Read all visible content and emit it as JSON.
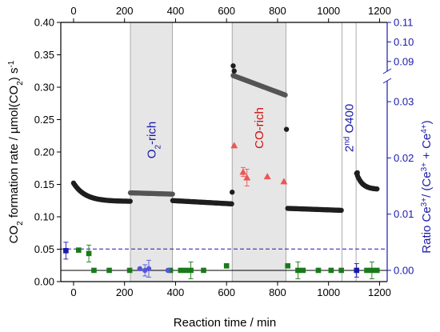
{
  "chart_data": {
    "type": "scatter",
    "xlabel": "Reaction time / min",
    "ylabel_parts": [
      "CO",
      "2",
      " formation rate / µmol(CO",
      "2",
      ") s",
      "-1"
    ],
    "y2label_parts": [
      "Ratio Ce",
      "3+",
      "/ (Ce",
      "3+",
      " + Ce",
      "4+",
      ")"
    ],
    "xlim": [
      -50,
      1230
    ],
    "ylim": [
      0,
      0.4
    ],
    "y2lim_lower": [
      -0.002,
      0.034
    ],
    "y2lim_upper": [
      0.085,
      0.11
    ],
    "x_ticks": [
      0,
      200,
      400,
      600,
      800,
      1000,
      1200
    ],
    "y_ticks": [
      0.0,
      0.05,
      0.1,
      0.15,
      0.2,
      0.25,
      0.3,
      0.35,
      0.4
    ],
    "y_tick_labels": [
      "0.00",
      "0.05",
      "0.10",
      "0.15",
      "0.20",
      "0.25",
      "0.30",
      "0.35",
      "0.40"
    ],
    "y2_ticks_lower": [
      0.0,
      0.01,
      0.02,
      0.03
    ],
    "y2_tick_labels_lower": [
      "0.00",
      "0.01",
      "0.02",
      "0.03"
    ],
    "y2_ticks_upper": [
      0.09,
      0.1,
      0.11
    ],
    "y2_tick_labels_upper": [
      "0.09",
      "0.10",
      "0.11"
    ],
    "regions": [
      {
        "label_parts": [
          "O",
          "2",
          "-rich"
        ],
        "x": [
          223,
          388
        ],
        "color": "#1a1aaa"
      },
      {
        "label_parts": [
          "CO-rich"
        ],
        "x": [
          622,
          833
        ],
        "color": "#cc1111"
      },
      {
        "label_parts": [
          "2",
          "nd",
          " O400"
        ],
        "x": [
          1053,
          1108
        ],
        "color": "#1a1aaa"
      }
    ],
    "series": [
      {
        "marker": "circle",
        "color": "#1e1e1e",
        "axis": "left",
        "segments": [
          {
            "x": [
              0,
              222
            ],
            "y": [
              0.152,
              0.124
            ],
            "decay": 0.8,
            "n": 55
          },
          {
            "x": [
              223,
              388
            ],
            "y": [
              0.137,
              0.135
            ],
            "decay": 0,
            "n": 40,
            "color": "#555555"
          },
          {
            "x": [
              389,
              620
            ],
            "y": [
              0.125,
              0.12
            ],
            "decay": 0,
            "n": 55
          },
          {
            "x": [
              626,
              830
            ],
            "y": [
              0.318,
              0.288
            ],
            "decay": 0,
            "n": 50,
            "color": "#555555"
          },
          {
            "x": [
              840,
              1050
            ],
            "y": [
              0.113,
              0.11
            ],
            "decay": 0,
            "n": 50
          },
          {
            "x": [
              1110,
              1190
            ],
            "y": [
              0.167,
              0.143
            ],
            "decay": 0.6,
            "n": 22
          }
        ],
        "points": [
          [
            622,
            0.138
          ],
          [
            626,
            0.333
          ],
          [
            630,
            0.325
          ],
          [
            835,
            0.235
          ],
          [
            1113,
            0.168
          ]
        ]
      },
      {
        "marker": "square",
        "color": "#1a7a1a",
        "axis": "y2-lower",
        "points": [
          [
            20,
            0.0036,
            0.0
          ],
          [
            60,
            0.003,
            0.0015
          ],
          [
            80,
            0.0,
            0.0
          ],
          [
            140,
            0.0,
            0.0
          ],
          [
            220,
            0.0,
            0.0
          ],
          [
            380,
            0.0,
            0.0
          ],
          [
            420,
            0.0,
            0.0
          ],
          [
            440,
            0.0,
            0.0
          ],
          [
            460,
            0.0,
            0.0
          ],
          [
            510,
            0.0,
            0.0
          ],
          [
            600,
            0.0008,
            0.0
          ],
          [
            840,
            0.0008,
            0.0
          ],
          [
            880,
            0.0,
            0.0
          ],
          [
            900,
            0.0,
            0.0
          ],
          [
            960,
            0.0,
            0.0
          ],
          [
            1010,
            0.0,
            0.0
          ],
          [
            1050,
            0.0,
            0.0
          ],
          [
            1150,
            0.0,
            0.0
          ],
          [
            1170,
            0.0,
            0.0
          ],
          [
            1190,
            0.0,
            0.0
          ]
        ],
        "error_points": [
          [
            60,
            0.003,
            0.0015
          ],
          [
            460,
            0.0,
            0.0015
          ],
          [
            880,
            0.0,
            0.0015
          ],
          [
            1170,
            0.0,
            0.0015
          ]
        ]
      },
      {
        "marker": "circle",
        "color": "#5555dd",
        "axis": "y2-lower",
        "points": [
          [
            260,
            0.0003,
            0.0
          ],
          [
            280,
            0.0,
            0.0
          ],
          [
            295,
            0.0003,
            0.0
          ],
          [
            370,
            0.0,
            0.0
          ]
        ],
        "error_points": [
          [
            280,
            0.0,
            0.001
          ],
          [
            295,
            0.0003,
            0.0015
          ]
        ]
      },
      {
        "marker": "square",
        "color": "#1a1aaa",
        "axis": "y2-lower",
        "points": [
          [
            -30,
            0.0035,
            0.0
          ],
          [
            1110,
            0.0,
            0.0
          ]
        ],
        "error_points": [
          [
            -30,
            0.0035,
            0.0015
          ],
          [
            1110,
            0.0,
            0.0012
          ]
        ]
      },
      {
        "marker": "triangle",
        "color": "#ee5555",
        "axis": "y2-lower",
        "points": [
          [
            630,
            0.0222,
            0.0
          ],
          [
            665,
            0.0175,
            0.001
          ],
          [
            680,
            0.0165,
            0.0015
          ],
          [
            760,
            0.0167,
            0.0
          ],
          [
            825,
            0.0158,
            0.0
          ]
        ],
        "error_points": [
          [
            665,
            0.0175,
            0.0008
          ],
          [
            680,
            0.0165,
            0.0015
          ]
        ]
      }
    ],
    "hlines": [
      {
        "axis": "y2-lower",
        "y": 0.0,
        "color": "#000000",
        "style": "solid"
      },
      {
        "axis": "y2-lower",
        "y": 0.0038,
        "color": "#1a1aaa",
        "style": "dashed"
      }
    ],
    "vlines": [
      {
        "x": 1053,
        "color": "#999999"
      },
      {
        "x": 1108,
        "color": "#999999"
      }
    ]
  }
}
